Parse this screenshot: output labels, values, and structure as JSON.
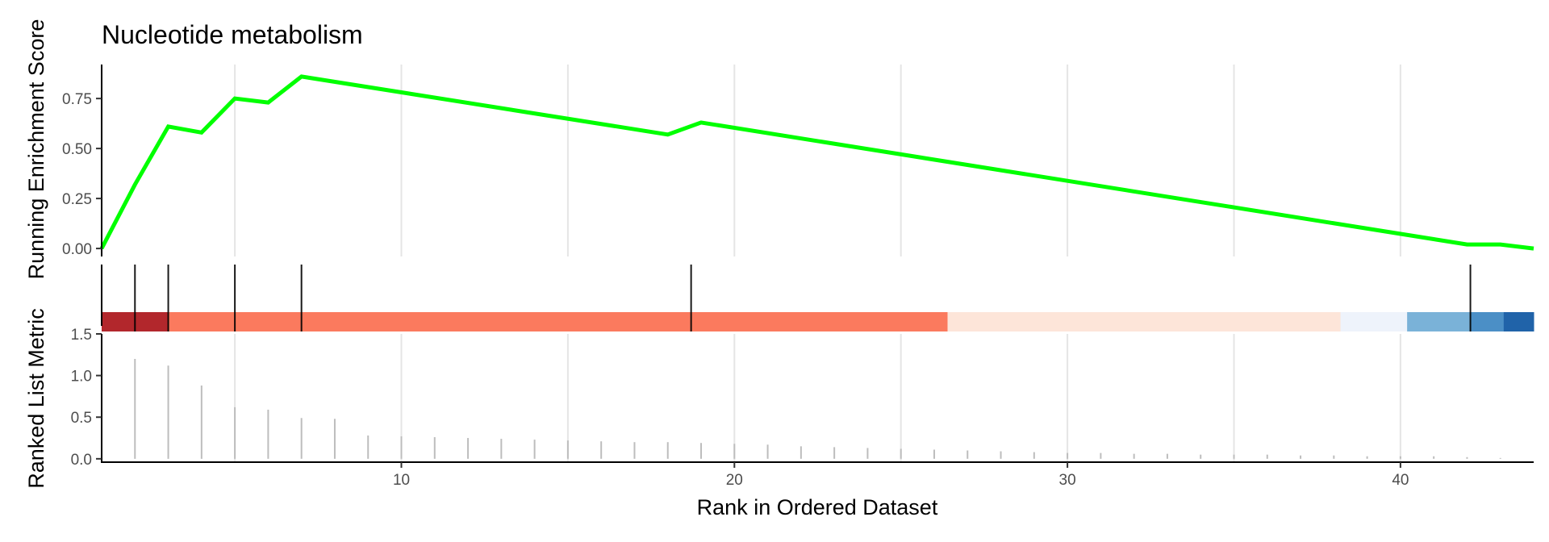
{
  "chart_data": {
    "type": "line",
    "title": "Nucleotide metabolism",
    "xlabel": "Rank in Ordered Dataset",
    "xlim": [
      1,
      44
    ],
    "x_ticks": [
      10,
      20,
      30,
      40
    ],
    "x_tick_labels": [
      "10",
      "20",
      "30",
      "40"
    ],
    "grid": "vertical major gridlines",
    "panels": {
      "running_score": {
        "ylabel": "Running Enrichment Score",
        "ylim": [
          -0.04,
          0.92
        ],
        "y_ticks": [
          0,
          0.25,
          0.5,
          0.75
        ],
        "y_tick_labels": [
          "0.00",
          "0.25",
          "0.50",
          "0.75"
        ],
        "color": "#00ff00",
        "x": [
          1,
          2,
          3,
          4,
          5,
          6,
          7,
          18,
          19,
          42,
          43,
          44
        ],
        "y": [
          0.0,
          0.32,
          0.61,
          0.58,
          0.75,
          0.73,
          0.86,
          0.57,
          0.63,
          0.02,
          0.02,
          0.0
        ]
      },
      "hits": {
        "positions": [
          2,
          3,
          5,
          7,
          18.7,
          42.1
        ],
        "color": "#000000"
      },
      "rank_colorbar": {
        "segments": [
          {
            "from": 1,
            "to": 3,
            "color": "#b2272c"
          },
          {
            "from": 3,
            "to": 26.4,
            "color": "#fb7a5e"
          },
          {
            "from": 26.4,
            "to": 38.2,
            "color": "#fde5d9"
          },
          {
            "from": 38.2,
            "to": 40.2,
            "color": "#eef3fb"
          },
          {
            "from": 40.2,
            "to": 42.1,
            "color": "#7ab2d8"
          },
          {
            "from": 42.1,
            "to": 43.1,
            "color": "#4b8fc6"
          },
          {
            "from": 43.1,
            "to": 44,
            "color": "#2063a9"
          }
        ]
      },
      "ranked_metric": {
        "ylabel": "Ranked List Metric",
        "ylim": [
          -0.05,
          1.5
        ],
        "y_ticks": [
          0,
          0.5,
          1.0,
          1.5
        ],
        "y_tick_labels": [
          "0.0",
          "0.5",
          "1.0",
          "1.5"
        ],
        "color": "#bdbdbd",
        "x": [
          2,
          3,
          4,
          5,
          6,
          7,
          8,
          9,
          10,
          11,
          12,
          13,
          14,
          15,
          16,
          17,
          18,
          19,
          20,
          21,
          22,
          23,
          24,
          25,
          26,
          27,
          28,
          29,
          30,
          31,
          32,
          33,
          34,
          35,
          36,
          37,
          38,
          39,
          40,
          41,
          42,
          43
        ],
        "values": [
          1.2,
          1.12,
          0.88,
          0.62,
          0.59,
          0.49,
          0.48,
          0.28,
          0.27,
          0.26,
          0.25,
          0.24,
          0.23,
          0.22,
          0.21,
          0.2,
          0.2,
          0.19,
          0.18,
          0.17,
          0.15,
          0.14,
          0.13,
          0.12,
          0.11,
          0.1,
          0.09,
          0.08,
          0.07,
          0.07,
          0.06,
          0.06,
          0.05,
          0.05,
          0.05,
          0.04,
          0.04,
          0.03,
          0.03,
          0.03,
          0.02,
          0.01
        ]
      }
    }
  }
}
